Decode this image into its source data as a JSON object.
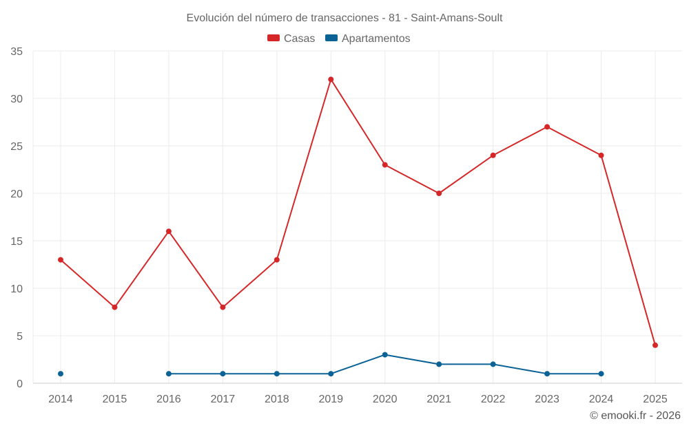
{
  "chart_data": {
    "type": "line",
    "title": "Evolución del número de transacciones - 81 - Saint-Amans-Soult",
    "categories": [
      "2014",
      "2015",
      "2016",
      "2017",
      "2018",
      "2019",
      "2020",
      "2021",
      "2022",
      "2023",
      "2024",
      "2025"
    ],
    "series": [
      {
        "name": "Casas",
        "color": "#d62728",
        "values": [
          13,
          8,
          16,
          8,
          13,
          32,
          23,
          20,
          24,
          27,
          24,
          4
        ]
      },
      {
        "name": "Apartamentos",
        "color": "#0a6296",
        "values": [
          1,
          null,
          1,
          1,
          1,
          1,
          3,
          2,
          2,
          1,
          1,
          null
        ]
      }
    ],
    "yticks": [
      0,
      5,
      10,
      15,
      20,
      25,
      30,
      35
    ],
    "ylim": [
      0,
      35
    ],
    "xlabel": "",
    "ylabel": "",
    "grid": true,
    "legend": "top-center"
  },
  "credit": "© emooki.fr - 2026"
}
